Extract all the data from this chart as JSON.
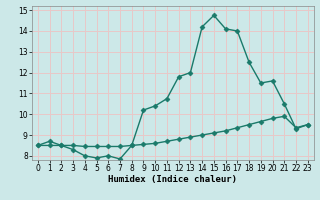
{
  "xlabel": "Humidex (Indice chaleur)",
  "xlim": [
    -0.5,
    23.5
  ],
  "ylim": [
    7.8,
    15.2
  ],
  "yticks": [
    8,
    9,
    10,
    11,
    12,
    13,
    14,
    15
  ],
  "xticks": [
    0,
    1,
    2,
    3,
    4,
    5,
    6,
    7,
    8,
    9,
    10,
    11,
    12,
    13,
    14,
    15,
    16,
    17,
    18,
    19,
    20,
    21,
    22,
    23
  ],
  "line1_x": [
    0,
    1,
    2,
    3,
    4,
    5,
    6,
    7,
    8,
    9,
    10,
    11,
    12,
    13,
    14,
    15,
    16,
    17,
    18,
    19,
    20,
    21,
    22,
    23
  ],
  "line1_y": [
    8.5,
    8.7,
    8.5,
    8.3,
    8.0,
    7.9,
    8.0,
    7.85,
    8.5,
    10.2,
    10.4,
    10.75,
    11.8,
    12.0,
    14.2,
    14.75,
    14.1,
    14.0,
    12.5,
    11.5,
    11.6,
    10.5,
    9.3,
    9.5
  ],
  "line2_x": [
    0,
    1,
    2,
    3,
    4,
    5,
    6,
    7,
    8,
    9,
    10,
    11,
    12,
    13,
    14,
    15,
    16,
    17,
    18,
    19,
    20,
    21,
    22,
    23
  ],
  "line2_y": [
    8.5,
    8.5,
    8.5,
    8.5,
    8.45,
    8.45,
    8.45,
    8.45,
    8.5,
    8.55,
    8.6,
    8.7,
    8.8,
    8.9,
    9.0,
    9.1,
    9.2,
    9.35,
    9.5,
    9.65,
    9.8,
    9.9,
    9.35,
    9.5
  ],
  "line_color": "#1a7a6a",
  "bg_color": "#cce8e8",
  "grid_color": "#e8c8c8",
  "marker": "D",
  "marker_size": 2.5,
  "linewidth": 1.0,
  "figsize": [
    3.2,
    2.0
  ],
  "dpi": 100
}
